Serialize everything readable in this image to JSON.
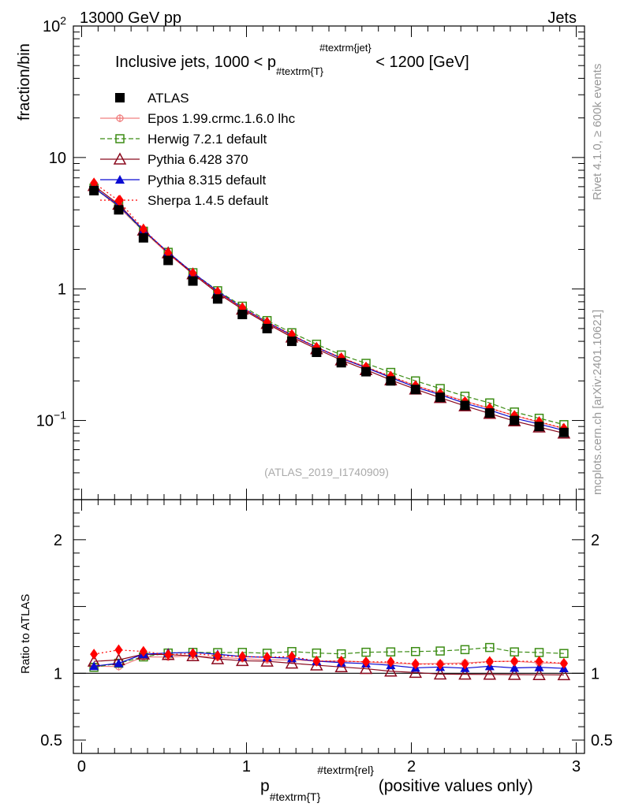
{
  "header": {
    "left": "13000 GeV pp",
    "right": "Jets",
    "side_top": "Rivet 4.1.0, ≥ 600k events",
    "side_bottom": "mcplots.cern.ch [arXiv:2401.10621]"
  },
  "chart_data": {
    "type": "line",
    "title_parts": [
      "Inclusive jets, 1000 < p",
      "#textrm{T}",
      "#textrm{jet}",
      " < 1200 [GeV]"
    ],
    "ylabel": "fraction/bin",
    "ratio_ylabel": "Ratio to ATLAS",
    "xlabel_parts": [
      "p",
      "#textrm{T}",
      "#textrm{rel}",
      " (positive values only)"
    ],
    "watermark": "(ATLAS_2019_I1740909)",
    "xlim": [
      -0.05,
      3.05
    ],
    "ylim": [
      0.025,
      100
    ],
    "ratio_ylim": [
      0.4,
      2.3
    ],
    "x_ticks": [
      {
        "v": 0,
        "label": "0"
      },
      {
        "v": 1,
        "label": "1"
      },
      {
        "v": 2,
        "label": "2"
      },
      {
        "v": 3,
        "label": "3"
      }
    ],
    "y_ticks": [
      {
        "v": 0.1,
        "base": "10",
        "exp": "−1"
      },
      {
        "v": 1,
        "base": "1",
        "exp": ""
      },
      {
        "v": 10,
        "base": "10",
        "exp": ""
      },
      {
        "v": 100,
        "base": "10",
        "exp": "2"
      }
    ],
    "ratio_ticks": [
      {
        "v": 0.5,
        "label": "0.5"
      },
      {
        "v": 1,
        "label": "1"
      },
      {
        "v": 2,
        "label": "2"
      }
    ],
    "x": [
      0.075,
      0.225,
      0.375,
      0.525,
      0.675,
      0.825,
      0.975,
      1.125,
      1.275,
      1.425,
      1.575,
      1.725,
      1.875,
      2.025,
      2.175,
      2.325,
      2.475,
      2.625,
      2.775,
      2.925
    ],
    "series": [
      {
        "name": "ATLAS",
        "color": "#000000",
        "marker": "square-filled",
        "line": "none",
        "values": [
          5.6,
          4.0,
          2.45,
          1.65,
          1.15,
          0.84,
          0.64,
          0.5,
          0.4,
          0.33,
          0.275,
          0.235,
          0.2,
          0.172,
          0.15,
          0.13,
          0.114,
          0.1,
          0.09,
          0.081
        ]
      },
      {
        "name": "Epos 1.99.crmc.1.6.0 lhc",
        "color": "#f08080",
        "marker": "circle-cross",
        "line": "solid",
        "values": [
          5.9,
          4.2,
          2.75,
          1.85,
          1.3,
          0.94,
          0.71,
          0.55,
          0.44,
          0.36,
          0.3,
          0.255,
          0.215,
          0.184,
          0.161,
          0.14,
          0.124,
          0.109,
          0.097,
          0.087
        ]
      },
      {
        "name": "Herwig 7.2.1 default",
        "color": "#3c8c14",
        "marker": "square-open",
        "line": "dashed",
        "values": [
          5.85,
          4.3,
          2.75,
          1.9,
          1.33,
          0.97,
          0.74,
          0.575,
          0.465,
          0.38,
          0.315,
          0.272,
          0.232,
          0.2,
          0.175,
          0.153,
          0.136,
          0.116,
          0.104,
          0.093
        ]
      },
      {
        "name": "Pythia 6.428 370",
        "color": "#8b0a1e",
        "marker": "triangle-open",
        "line": "solid",
        "values": [
          6.1,
          4.4,
          2.8,
          1.88,
          1.3,
          0.93,
          0.7,
          0.545,
          0.43,
          0.35,
          0.288,
          0.243,
          0.203,
          0.173,
          0.149,
          0.129,
          0.113,
          0.099,
          0.089,
          0.08
        ]
      },
      {
        "name": "Pythia 8.315 default",
        "color": "#0a0ad2",
        "marker": "triangle-filled",
        "line": "solid",
        "values": [
          5.9,
          4.3,
          2.8,
          1.9,
          1.33,
          0.96,
          0.72,
          0.56,
          0.445,
          0.36,
          0.297,
          0.252,
          0.212,
          0.179,
          0.157,
          0.135,
          0.12,
          0.104,
          0.094,
          0.084
        ]
      },
      {
        "name": "Sherpa 1.4.5 default",
        "color": "#ff0000",
        "marker": "diamond-filled",
        "line": "dotted",
        "values": [
          6.4,
          4.7,
          2.85,
          1.88,
          1.32,
          0.95,
          0.72,
          0.56,
          0.45,
          0.36,
          0.3,
          0.255,
          0.217,
          0.184,
          0.16,
          0.139,
          0.124,
          0.109,
          0.098,
          0.087
        ]
      }
    ]
  }
}
